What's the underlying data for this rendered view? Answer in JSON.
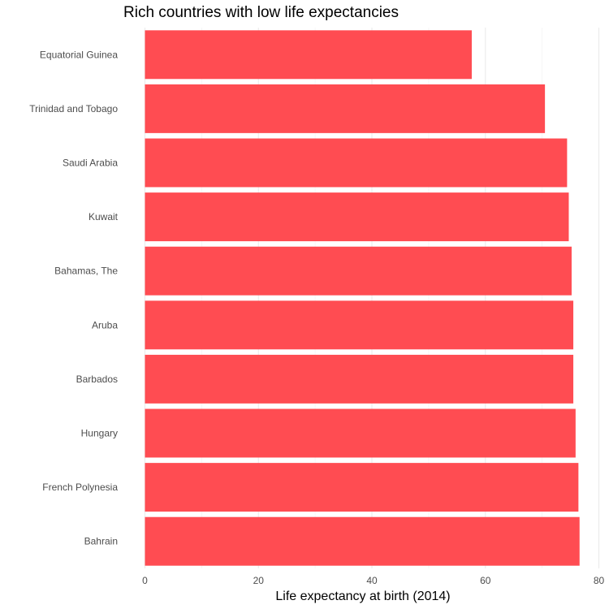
{
  "chart_data": {
    "type": "bar",
    "orientation": "horizontal",
    "title": "Rich countries with low life expectancies",
    "xlabel": "Life expectancy at birth (2014)",
    "ylabel": "",
    "xlim": [
      0,
      80
    ],
    "x_ticks": [
      0,
      20,
      40,
      60,
      80
    ],
    "grid": true,
    "legend": "none",
    "bar_color": "#ff4c52",
    "categories": [
      "Equatorial Guinea",
      "Trinidad and Tobago",
      "Saudi Arabia",
      "Kuwait",
      "Bahamas, The",
      "Aruba",
      "Barbados",
      "Hungary",
      "French Polynesia",
      "Bahrain"
    ],
    "values": [
      57.6,
      70.5,
      74.4,
      74.7,
      75.2,
      75.5,
      75.5,
      75.9,
      76.4,
      76.6
    ]
  }
}
